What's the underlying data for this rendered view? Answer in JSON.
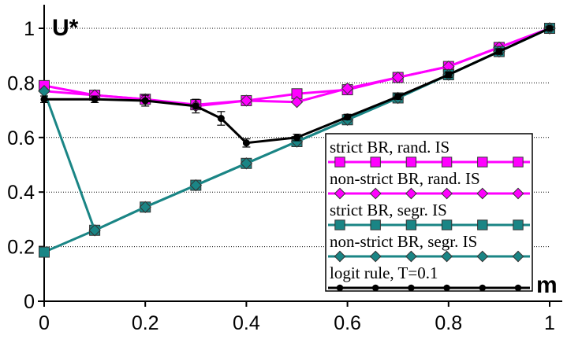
{
  "chart_data": {
    "type": "line",
    "xlabel": "m",
    "ylabel": "U*",
    "xlim": [
      0,
      1
    ],
    "ylim": [
      0,
      1
    ],
    "xticks": [
      0,
      0.2,
      0.4,
      0.6,
      0.8,
      1
    ],
    "yticks": [
      0,
      0.2,
      0.4,
      0.6,
      0.8,
      1
    ],
    "xtick_labels": [
      "0",
      "0.2",
      "0.4",
      "0.6",
      "0.8",
      "1"
    ],
    "ytick_labels": [
      "0",
      "0.2",
      "0.4",
      "0.6",
      "0.8",
      "1"
    ],
    "grid": "horizontal dotted",
    "legend_position": "bottom-right",
    "series": [
      {
        "name": "strict BR, rand. IS",
        "color": "#ff00ff",
        "marker": "square",
        "x": [
          0,
          0.1,
          0.2,
          0.3,
          0.4,
          0.5,
          0.6,
          0.7,
          0.8,
          0.9,
          1
        ],
        "y": [
          0.79,
          0.755,
          0.74,
          0.72,
          0.735,
          0.76,
          0.775,
          0.82,
          0.86,
          0.93,
          1.0
        ]
      },
      {
        "name": "non-strict BR, rand. IS",
        "color": "#ff00ff",
        "marker": "diamond",
        "x": [
          0,
          0.1,
          0.2,
          0.3,
          0.4,
          0.5,
          0.6,
          0.7,
          0.8,
          0.9,
          1
        ],
        "y": [
          0.77,
          0.755,
          0.74,
          0.715,
          0.735,
          0.73,
          0.78,
          0.82,
          0.86,
          0.93,
          1.0
        ]
      },
      {
        "name": "strict BR, segr. IS",
        "color": "#1a8585",
        "marker": "square",
        "x": [
          0,
          0.1,
          0.2,
          0.3,
          0.4,
          0.5,
          0.6,
          0.7,
          0.8,
          0.9,
          1
        ],
        "y": [
          0.18,
          0.26,
          0.345,
          0.425,
          0.505,
          0.585,
          0.665,
          0.745,
          0.83,
          0.915,
          1.0
        ]
      },
      {
        "name": "non-strict BR, segr. IS",
        "color": "#1a8585",
        "marker": "diamond",
        "x": [
          0,
          0.1,
          0.2,
          0.3,
          0.4,
          0.5,
          0.6,
          0.7,
          0.8,
          0.9,
          1
        ],
        "y": [
          0.77,
          0.26,
          0.345,
          0.425,
          0.505,
          0.585,
          0.665,
          0.745,
          0.83,
          0.915,
          1.0
        ]
      },
      {
        "name": "logit rule, T=0.1",
        "color": "#000000",
        "marker": "circle",
        "x": [
          0,
          0.1,
          0.2,
          0.3,
          0.35,
          0.4,
          0.5,
          0.6,
          0.7,
          0.8,
          0.9,
          1
        ],
        "y": [
          0.74,
          0.74,
          0.735,
          0.715,
          0.67,
          0.58,
          0.6,
          0.675,
          0.75,
          0.83,
          0.915,
          1.0
        ],
        "err": [
          0.012,
          0.012,
          0.02,
          0.025,
          0.025,
          0.015,
          0.012,
          0.01,
          0.01,
          0.01,
          0.01,
          0.005
        ]
      }
    ]
  }
}
